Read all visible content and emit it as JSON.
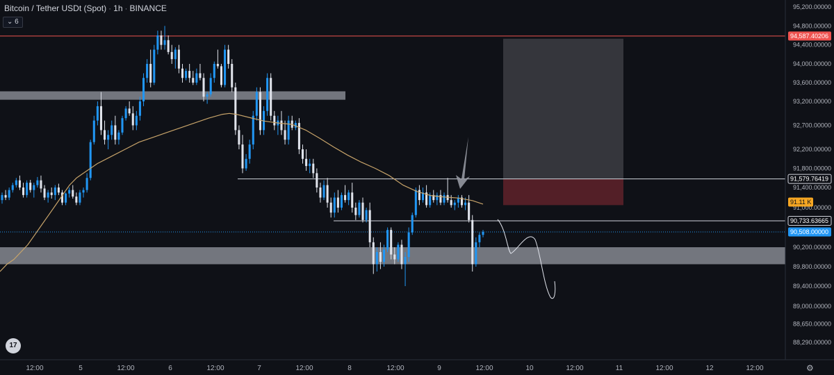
{
  "header": {
    "symbol": "Bitcoin / Tether USDt (Spot)",
    "interval": "1h",
    "exchange": "BINANCE",
    "separator": "·",
    "indicator_toggle": "6"
  },
  "icons": {
    "logo": "tradingview-logo",
    "settings": "gear-icon",
    "collapse": "chevron-down-icon",
    "tv_text": "17"
  },
  "colors": {
    "background": "#0f1117",
    "up": "#2196f3",
    "down": "#e0e3eb",
    "ma": "#c8a46a",
    "resistance": "#ef5350",
    "zone": "#9598a1",
    "current_price": "#2196f3",
    "stop_zone": "#5b2129",
    "target_zone": "#3a3b40"
  },
  "chart_data": {
    "type": "candlestick",
    "title": "Bitcoin / Tether USDt (Spot) · 1h · BINANCE",
    "xlabel": "",
    "ylabel": "",
    "ylim": [
      87950,
      95300
    ],
    "grid": false,
    "y_ticks": [
      95200,
      94800,
      94400,
      94000,
      93600,
      93200,
      92700,
      92200,
      91800,
      91400,
      91000,
      90200,
      89800,
      89400,
      89000,
      88650,
      88290
    ],
    "y_tick_labels": [
      "95,200.00000",
      "94,800.00000",
      "94,400.00000",
      "94,000.00000",
      "93,600.00000",
      "93,200.00000",
      "92,700.00000",
      "92,200.00000",
      "91,800.00000",
      "91,400.00000",
      "91,000.00000",
      "90,200.00000",
      "89,800.00000",
      "89,400.00000",
      "89,000.00000",
      "88,650.00000",
      "88,290.00000"
    ],
    "x_ticks": [
      "12:00",
      "5",
      "12:00",
      "6",
      "12:00",
      "7",
      "12:00",
      "8",
      "12:00",
      "9",
      "12:00",
      "10",
      "12:00",
      "11",
      "12:00",
      "12",
      "12:00"
    ],
    "price_labels": [
      {
        "name": "resistance",
        "value": 94587.40206,
        "text": "94,587.40206"
      },
      {
        "name": "level-upper",
        "value": 91579.76419,
        "text": "91,579.76419"
      },
      {
        "name": "ma-value",
        "value": 91110,
        "text": "91.11 K"
      },
      {
        "name": "level-lower",
        "value": 90733.63665,
        "text": "90,733.63665"
      },
      {
        "name": "current",
        "value": 90508,
        "text": "90,508.00000"
      }
    ],
    "zones": [
      {
        "name": "supply-zone",
        "from": 93250,
        "to": 93400
      },
      {
        "name": "demand-zone",
        "from": 89850,
        "to": 90200
      },
      {
        "name": "target-box",
        "from": 91580,
        "to": 94530
      },
      {
        "name": "stop-box",
        "from": 91050,
        "to": 91580
      }
    ],
    "candles": [
      [
        91150,
        91300,
        91080,
        91250
      ],
      [
        91250,
        91350,
        91150,
        91200
      ],
      [
        91200,
        91400,
        91150,
        91350
      ],
      [
        91350,
        91500,
        91300,
        91450
      ],
      [
        91450,
        91600,
        91400,
        91550
      ],
      [
        91550,
        91650,
        91350,
        91400
      ],
      [
        91400,
        91500,
        91200,
        91250
      ],
      [
        91250,
        91550,
        91200,
        91500
      ],
      [
        91500,
        91560,
        91300,
        91350
      ],
      [
        91350,
        91500,
        91200,
        91450
      ],
      [
        91450,
        91620,
        91400,
        91550
      ],
      [
        91550,
        91650,
        91300,
        91380
      ],
      [
        91380,
        91450,
        91150,
        91200
      ],
      [
        91200,
        91350,
        91100,
        91300
      ],
      [
        91300,
        91400,
        91180,
        91250
      ],
      [
        91250,
        91450,
        91150,
        91400
      ],
      [
        91400,
        91480,
        91250,
        91300
      ],
      [
        91300,
        91350,
        91050,
        91100
      ],
      [
        91100,
        91300,
        91050,
        91280
      ],
      [
        91280,
        91400,
        91200,
        91350
      ],
      [
        91350,
        91450,
        91180,
        91220
      ],
      [
        91220,
        91300,
        91050,
        91100
      ],
      [
        91100,
        91350,
        91050,
        91300
      ],
      [
        91300,
        91400,
        91200,
        91350
      ],
      [
        91350,
        91700,
        91300,
        91600
      ],
      [
        91600,
        92400,
        91550,
        92350
      ],
      [
        92350,
        92900,
        92300,
        92800
      ],
      [
        92800,
        93200,
        92700,
        93100
      ],
      [
        93100,
        93400,
        92500,
        92600
      ],
      [
        92600,
        92800,
        92300,
        92400
      ],
      [
        92400,
        92600,
        92200,
        92500
      ],
      [
        92500,
        92800,
        92400,
        92700
      ],
      [
        92700,
        92900,
        92300,
        92400
      ],
      [
        92400,
        92600,
        92300,
        92550
      ],
      [
        92550,
        92900,
        92500,
        92850
      ],
      [
        92850,
        93100,
        92800,
        93050
      ],
      [
        93050,
        93200,
        92900,
        92950
      ],
      [
        92950,
        93100,
        92600,
        92700
      ],
      [
        92700,
        93000,
        92600,
        92900
      ],
      [
        92900,
        93300,
        92800,
        93200
      ],
      [
        93200,
        93800,
        93100,
        93700
      ],
      [
        93700,
        94100,
        93600,
        94000
      ],
      [
        94000,
        94300,
        93500,
        93600
      ],
      [
        93600,
        94400,
        93550,
        94300
      ],
      [
        94300,
        94700,
        94200,
        94600
      ],
      [
        94600,
        94700,
        94300,
        94400
      ],
      [
        94400,
        94800,
        94300,
        94500
      ],
      [
        94500,
        94600,
        94200,
        94250
      ],
      [
        94250,
        94400,
        94000,
        94100
      ],
      [
        94100,
        94350,
        93900,
        94300
      ],
      [
        94300,
        94400,
        93800,
        93900
      ],
      [
        93900,
        94000,
        93600,
        93700
      ],
      [
        93700,
        93900,
        93650,
        93850
      ],
      [
        93850,
        94000,
        93600,
        93700
      ],
      [
        93700,
        93850,
        93550,
        93600
      ],
      [
        93600,
        93900,
        93550,
        93800
      ],
      [
        93800,
        94000,
        93650,
        93700
      ],
      [
        93700,
        93800,
        93200,
        93300
      ],
      [
        93300,
        93400,
        93150,
        93350
      ],
      [
        93350,
        93800,
        93300,
        93700
      ],
      [
        93700,
        94050,
        93600,
        94000
      ],
      [
        94000,
        94300,
        93900,
        93950
      ],
      [
        93950,
        94000,
        93500,
        93550
      ],
      [
        93550,
        94400,
        93500,
        94300
      ],
      [
        94300,
        94400,
        93900,
        94000
      ],
      [
        94000,
        94100,
        93400,
        93500
      ],
      [
        93500,
        93600,
        92500,
        92600
      ],
      [
        92600,
        92700,
        92200,
        92300
      ],
      [
        92300,
        92500,
        91700,
        91800
      ],
      [
        91800,
        92100,
        91750,
        92000
      ],
      [
        92000,
        92400,
        91900,
        92300
      ],
      [
        92300,
        93000,
        92200,
        92900
      ],
      [
        92900,
        93500,
        92800,
        93400
      ],
      [
        93400,
        93500,
        92500,
        92600
      ],
      [
        92600,
        93100,
        92500,
        93000
      ],
      [
        93000,
        93800,
        92900,
        93700
      ],
      [
        93700,
        93800,
        92800,
        92900
      ],
      [
        92900,
        93000,
        92600,
        92700
      ],
      [
        92700,
        92900,
        92500,
        92800
      ],
      [
        92800,
        93000,
        92500,
        92600
      ],
      [
        92600,
        92800,
        92300,
        92400
      ],
      [
        92400,
        92900,
        92300,
        92800
      ],
      [
        92800,
        92900,
        92600,
        92650
      ],
      [
        92650,
        92800,
        92600,
        92750
      ],
      [
        92750,
        92850,
        92100,
        92200
      ],
      [
        92200,
        92300,
        91900,
        92000
      ],
      [
        92000,
        92200,
        91750,
        91850
      ],
      [
        91850,
        92000,
        91700,
        91900
      ],
      [
        91900,
        92000,
        91600,
        91700
      ],
      [
        91700,
        91800,
        91300,
        91400
      ],
      [
        91400,
        91500,
        91100,
        91200
      ],
      [
        91200,
        91550,
        91150,
        91450
      ],
      [
        91450,
        91600,
        91000,
        91100
      ],
      [
        91100,
        91200,
        90800,
        90900
      ],
      [
        90900,
        91300,
        90800,
        91200
      ],
      [
        91200,
        91350,
        90900,
        91000
      ],
      [
        91000,
        91300,
        90950,
        91250
      ],
      [
        91250,
        91450,
        91100,
        91150
      ],
      [
        91150,
        91350,
        91050,
        91300
      ],
      [
        91300,
        91500,
        90900,
        91000
      ],
      [
        91000,
        91100,
        90750,
        90850
      ],
      [
        90850,
        91150,
        90800,
        91100
      ],
      [
        91100,
        91200,
        90700,
        90750
      ],
      [
        90750,
        91000,
        90700,
        90950
      ],
      [
        90950,
        91100,
        90200,
        90300
      ],
      [
        90300,
        90400,
        89650,
        89850
      ],
      [
        89850,
        90200,
        89700,
        90100
      ],
      [
        90100,
        90300,
        89750,
        89900
      ],
      [
        89900,
        90250,
        89800,
        90150
      ],
      [
        90150,
        90600,
        90100,
        90550
      ],
      [
        90550,
        90600,
        89950,
        90050
      ],
      [
        90050,
        90200,
        89850,
        89950
      ],
      [
        89950,
        90300,
        89900,
        90250
      ],
      [
        90250,
        90350,
        89750,
        89850
      ],
      [
        89850,
        90100,
        89400,
        90000
      ],
      [
        90000,
        90600,
        89900,
        90500
      ],
      [
        90500,
        90900,
        90450,
        90850
      ],
      [
        90850,
        91400,
        90800,
        91350
      ],
      [
        91350,
        91450,
        91050,
        91150
      ],
      [
        91150,
        91400,
        91100,
        91300
      ],
      [
        91300,
        91450,
        91000,
        91050
      ],
      [
        91050,
        91300,
        91000,
        91250
      ],
      [
        91250,
        91350,
        91100,
        91150
      ],
      [
        91150,
        91300,
        91050,
        91250
      ],
      [
        91250,
        91350,
        91050,
        91100
      ],
      [
        91100,
        91300,
        91050,
        91250
      ],
      [
        91250,
        91600,
        91100,
        91150
      ],
      [
        91150,
        91250,
        91000,
        91050
      ],
      [
        91050,
        91150,
        90950,
        91100
      ],
      [
        91100,
        91250,
        91000,
        91200
      ],
      [
        91200,
        91250,
        91000,
        91050
      ],
      [
        91050,
        91200,
        90950,
        91100
      ],
      [
        91100,
        91250,
        90700,
        90750
      ],
      [
        90750,
        90850,
        89700,
        89850
      ],
      [
        89850,
        90400,
        89800,
        90300
      ],
      [
        90300,
        90500,
        90200,
        90450
      ],
      [
        90450,
        90550,
        90400,
        90508
      ]
    ],
    "ma": [
      [
        0,
        89700
      ],
      [
        10,
        89850
      ],
      [
        20,
        89950
      ],
      [
        30,
        90100
      ],
      [
        40,
        90250
      ],
      [
        50,
        90450
      ],
      [
        60,
        90650
      ],
      [
        70,
        90850
      ],
      [
        80,
        91050
      ],
      [
        90,
        91250
      ],
      [
        100,
        91450
      ],
      [
        110,
        91600
      ],
      [
        120,
        91700
      ],
      [
        140,
        91900
      ],
      [
        160,
        92050
      ],
      [
        180,
        92200
      ],
      [
        200,
        92350
      ],
      [
        220,
        92450
      ],
      [
        240,
        92550
      ],
      [
        260,
        92650
      ],
      [
        280,
        92750
      ],
      [
        300,
        92850
      ],
      [
        320,
        92930
      ],
      [
        330,
        92950
      ],
      [
        340,
        92930
      ],
      [
        360,
        92860
      ],
      [
        380,
        92790
      ],
      [
        400,
        92750
      ],
      [
        420,
        92720
      ],
      [
        440,
        92600
      ],
      [
        460,
        92430
      ],
      [
        480,
        92250
      ],
      [
        500,
        92080
      ],
      [
        520,
        91930
      ],
      [
        540,
        91800
      ],
      [
        560,
        91650
      ],
      [
        580,
        91450
      ],
      [
        600,
        91320
      ],
      [
        620,
        91240
      ],
      [
        640,
        91210
      ],
      [
        660,
        91190
      ],
      [
        680,
        91140
      ],
      [
        695,
        91070
      ]
    ]
  }
}
